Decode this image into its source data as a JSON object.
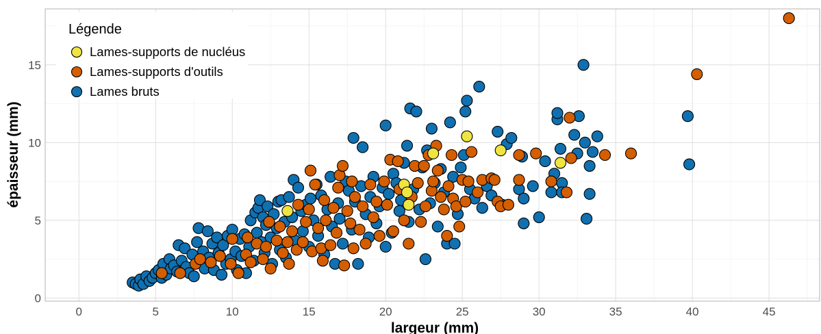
{
  "chart_data": {
    "type": "scatter",
    "xlabel": "largeur (mm)",
    "ylabel": "épaisseur (mm)",
    "xlim": [
      -2.2,
      48.3
    ],
    "ylim": [
      -0.2,
      18.6
    ],
    "xticks": [
      0,
      5,
      10,
      15,
      20,
      25,
      30,
      35,
      40,
      45
    ],
    "yticks": [
      0,
      5,
      10,
      15
    ],
    "grid": true,
    "legend": {
      "title": "Légende",
      "placement": "top-left"
    },
    "series": [
      {
        "name": "Lames bruts",
        "color": "#1070B0",
        "points": [
          [
            3.5,
            1.0
          ],
          [
            3.7,
            0.9
          ],
          [
            3.9,
            0.8
          ],
          [
            4.0,
            1.2
          ],
          [
            4.2,
            0.9
          ],
          [
            4.4,
            1.4
          ],
          [
            4.6,
            1.1
          ],
          [
            4.8,
            1.3
          ],
          [
            5.0,
            1.6
          ],
          [
            5.2,
            1.8
          ],
          [
            5.4,
            1.3
          ],
          [
            5.5,
            2.2
          ],
          [
            5.7,
            1.5
          ],
          [
            5.9,
            2.5
          ],
          [
            6.0,
            1.9
          ],
          [
            6.2,
            2.1
          ],
          [
            6.4,
            1.7
          ],
          [
            6.5,
            3.4
          ],
          [
            6.7,
            2.4
          ],
          [
            6.9,
            3.2
          ],
          [
            7.0,
            2.0
          ],
          [
            7.2,
            1.6
          ],
          [
            7.4,
            2.8
          ],
          [
            7.5,
            1.4
          ],
          [
            7.7,
            3.6
          ],
          [
            7.8,
            4.5
          ],
          [
            7.9,
            2.3
          ],
          [
            8.1,
            3.0
          ],
          [
            8.2,
            1.9
          ],
          [
            8.4,
            4.3
          ],
          [
            8.5,
            2.6
          ],
          [
            8.7,
            3.5
          ],
          [
            8.8,
            1.8
          ],
          [
            9.0,
            3.9
          ],
          [
            9.1,
            2.9
          ],
          [
            9.3,
            1.5
          ],
          [
            9.4,
            3.4
          ],
          [
            9.6,
            2.2
          ],
          [
            9.7,
            4.0
          ],
          [
            9.9,
            2.5
          ],
          [
            10.0,
            4.4
          ],
          [
            10.2,
            3.0
          ],
          [
            10.3,
            1.8
          ],
          [
            10.5,
            3.8
          ],
          [
            10.6,
            2.7
          ],
          [
            10.8,
            4.1
          ],
          [
            10.9,
            1.6
          ],
          [
            11.1,
            3.3
          ],
          [
            11.2,
            5.0
          ],
          [
            11.4,
            2.4
          ],
          [
            11.5,
            5.5
          ],
          [
            11.6,
            4.2
          ],
          [
            11.7,
            5.8
          ],
          [
            11.8,
            6.3
          ],
          [
            11.9,
            3.6
          ],
          [
            12.0,
            5.2
          ],
          [
            12.1,
            2.9
          ],
          [
            12.2,
            4.7
          ],
          [
            12.3,
            5.9
          ],
          [
            12.5,
            3.9
          ],
          [
            12.6,
            2.2
          ],
          [
            12.7,
            5.4
          ],
          [
            12.9,
            4.5
          ],
          [
            13.0,
            6.2
          ],
          [
            13.1,
            3.1
          ],
          [
            13.2,
            6.3
          ],
          [
            13.4,
            4.9
          ],
          [
            13.5,
            2.6
          ],
          [
            13.7,
            6.5
          ],
          [
            13.9,
            5.2
          ],
          [
            14.0,
            7.6
          ],
          [
            14.1,
            3.7
          ],
          [
            14.3,
            7.1
          ],
          [
            14.5,
            5.6
          ],
          [
            14.6,
            4.3
          ],
          [
            14.8,
            6.0
          ],
          [
            15.0,
            3.3
          ],
          [
            15.1,
            6.4
          ],
          [
            15.3,
            5.0
          ],
          [
            15.5,
            7.3
          ],
          [
            15.6,
            4.0
          ],
          [
            15.8,
            6.6
          ],
          [
            16.0,
            2.8
          ],
          [
            16.2,
            5.7
          ],
          [
            16.4,
            7.8
          ],
          [
            16.5,
            4.6
          ],
          [
            16.7,
            2.2
          ],
          [
            16.9,
            6.1
          ],
          [
            17.0,
            5.1
          ],
          [
            17.2,
            3.5
          ],
          [
            17.4,
            7.5
          ],
          [
            17.6,
            6.9
          ],
          [
            17.8,
            4.4
          ],
          [
            17.9,
            10.3
          ],
          [
            18.0,
            6.2
          ],
          [
            18.2,
            2.2
          ],
          [
            18.4,
            7.2
          ],
          [
            18.5,
            9.7
          ],
          [
            18.7,
            5.4
          ],
          [
            18.9,
            3.9
          ],
          [
            19.0,
            6.5
          ],
          [
            19.2,
            7.8
          ],
          [
            19.4,
            4.8
          ],
          [
            19.6,
            5.9
          ],
          [
            19.8,
            7.1
          ],
          [
            20.0,
            3.3
          ],
          [
            20.0,
            11.1
          ],
          [
            20.2,
            6.7
          ],
          [
            20.4,
            4.2
          ],
          [
            20.5,
            8.0
          ],
          [
            20.7,
            7.4
          ],
          [
            20.9,
            5.6
          ],
          [
            21.0,
            6.3
          ],
          [
            21.2,
            8.7
          ],
          [
            21.4,
            9.8
          ],
          [
            21.5,
            4.9
          ],
          [
            21.6,
            12.2
          ],
          [
            21.8,
            7.0
          ],
          [
            22.0,
            12.0
          ],
          [
            22.2,
            5.7
          ],
          [
            22.4,
            8.4
          ],
          [
            22.6,
            2.5
          ],
          [
            22.7,
            9.5
          ],
          [
            22.9,
            6.1
          ],
          [
            23.0,
            10.9
          ],
          [
            23.2,
            7.4
          ],
          [
            23.4,
            4.6
          ],
          [
            23.6,
            8.3
          ],
          [
            23.8,
            6.8
          ],
          [
            24.0,
            3.5
          ],
          [
            24.2,
            11.3
          ],
          [
            24.4,
            7.8
          ],
          [
            24.5,
            3.5
          ],
          [
            24.7,
            5.4
          ],
          [
            24.9,
            8.4
          ],
          [
            25.1,
            9.2
          ],
          [
            25.2,
            12.0
          ],
          [
            25.3,
            12.7
          ],
          [
            25.5,
            7.0
          ],
          [
            25.8,
            6.4
          ],
          [
            26.1,
            13.6
          ],
          [
            26.3,
            5.8
          ],
          [
            26.6,
            7.2
          ],
          [
            26.9,
            6.6
          ],
          [
            27.3,
            10.7
          ],
          [
            27.6,
            6.0
          ],
          [
            27.9,
            9.9
          ],
          [
            28.2,
            10.3
          ],
          [
            28.7,
            7.0
          ],
          [
            28.9,
            9.1
          ],
          [
            29.0,
            4.8
          ],
          [
            29.0,
            6.4
          ],
          [
            29.6,
            7.2
          ],
          [
            30.0,
            5.2
          ],
          [
            30.4,
            8.8
          ],
          [
            30.8,
            6.8
          ],
          [
            31.0,
            8.0
          ],
          [
            31.2,
            11.5
          ],
          [
            31.2,
            11.9
          ],
          [
            31.4,
            9.6
          ],
          [
            31.5,
            7.4
          ],
          [
            31.5,
            6.8
          ],
          [
            32.3,
            10.5
          ],
          [
            32.5,
            9.3
          ],
          [
            32.6,
            11.7
          ],
          [
            32.9,
            15.0
          ],
          [
            33.0,
            10.0
          ],
          [
            33.1,
            5.1
          ],
          [
            33.3,
            8.5
          ],
          [
            33.3,
            6.7
          ],
          [
            33.5,
            9.4
          ],
          [
            33.8,
            10.4
          ],
          [
            39.7,
            11.7
          ],
          [
            39.8,
            8.6
          ]
        ]
      },
      {
        "name": "Lames-supports d'outils",
        "color": "#D55E00",
        "points": [
          [
            5.4,
            1.6
          ],
          [
            6.6,
            1.6
          ],
          [
            7.6,
            2.2
          ],
          [
            7.9,
            2.5
          ],
          [
            8.6,
            2.3
          ],
          [
            9.2,
            2.7
          ],
          [
            9.9,
            2.2
          ],
          [
            10.0,
            3.8
          ],
          [
            10.4,
            1.6
          ],
          [
            10.9,
            2.8
          ],
          [
            11.0,
            3.9
          ],
          [
            11.2,
            2.3
          ],
          [
            11.6,
            3.5
          ],
          [
            12.0,
            2.5
          ],
          [
            12.2,
            3.3
          ],
          [
            12.4,
            4.9
          ],
          [
            12.5,
            1.9
          ],
          [
            12.9,
            3.7
          ],
          [
            13.1,
            4.6
          ],
          [
            13.3,
            2.9
          ],
          [
            13.6,
            3.6
          ],
          [
            13.7,
            2.2
          ],
          [
            13.9,
            4.3
          ],
          [
            14.2,
            3.1
          ],
          [
            14.3,
            6.0
          ],
          [
            14.6,
            3.6
          ],
          [
            14.8,
            4.9
          ],
          [
            15.0,
            5.7
          ],
          [
            15.1,
            8.2
          ],
          [
            15.2,
            3.0
          ],
          [
            15.4,
            7.3
          ],
          [
            15.6,
            4.5
          ],
          [
            15.8,
            3.2
          ],
          [
            15.9,
            2.4
          ],
          [
            16.0,
            6.3
          ],
          [
            16.1,
            5.0
          ],
          [
            16.4,
            3.4
          ],
          [
            16.6,
            5.8
          ],
          [
            16.8,
            4.2
          ],
          [
            16.9,
            7.1
          ],
          [
            17.0,
            7.9
          ],
          [
            17.2,
            8.5
          ],
          [
            17.3,
            2.1
          ],
          [
            17.5,
            5.6
          ],
          [
            17.7,
            4.8
          ],
          [
            17.8,
            7.5
          ],
          [
            17.9,
            3.2
          ],
          [
            18.0,
            6.5
          ],
          [
            18.3,
            4.4
          ],
          [
            18.5,
            5.9
          ],
          [
            18.7,
            3.5
          ],
          [
            19.0,
            7.3
          ],
          [
            19.2,
            5.2
          ],
          [
            19.4,
            6.2
          ],
          [
            19.6,
            4.0
          ],
          [
            19.9,
            7.5
          ],
          [
            20.1,
            6.0
          ],
          [
            20.3,
            8.9
          ],
          [
            20.5,
            4.3
          ],
          [
            20.8,
            8.8
          ],
          [
            20.9,
            7.0
          ],
          [
            21.2,
            5.0
          ],
          [
            21.5,
            3.5
          ],
          [
            21.7,
            6.5
          ],
          [
            21.9,
            8.5
          ],
          [
            22.1,
            7.4
          ],
          [
            22.3,
            4.9
          ],
          [
            22.5,
            8.5
          ],
          [
            22.6,
            5.9
          ],
          [
            22.8,
            9.2
          ],
          [
            23.0,
            6.9
          ],
          [
            23.1,
            7.5
          ],
          [
            23.3,
            9.8
          ],
          [
            23.4,
            8.2
          ],
          [
            23.6,
            6.5
          ],
          [
            23.8,
            5.7
          ],
          [
            24.0,
            4.0
          ],
          [
            24.1,
            7.2
          ],
          [
            24.3,
            9.2
          ],
          [
            24.4,
            6.4
          ],
          [
            24.6,
            5.9
          ],
          [
            24.8,
            4.6
          ],
          [
            25.0,
            7.6
          ],
          [
            25.2,
            6.2
          ],
          [
            25.4,
            7.5
          ],
          [
            25.6,
            9.4
          ],
          [
            26.0,
            6.8
          ],
          [
            26.3,
            7.6
          ],
          [
            26.9,
            7.7
          ],
          [
            27.1,
            7.6
          ],
          [
            27.3,
            6.2
          ],
          [
            27.5,
            5.9
          ],
          [
            28.0,
            6.0
          ],
          [
            28.7,
            9.2
          ],
          [
            28.7,
            7.6
          ],
          [
            29.8,
            9.3
          ],
          [
            30.8,
            7.5
          ],
          [
            31.8,
            6.8
          ],
          [
            32.0,
            11.6
          ],
          [
            32.1,
            9.0
          ],
          [
            34.3,
            9.2
          ],
          [
            36.0,
            9.3
          ],
          [
            40.3,
            14.4
          ],
          [
            46.3,
            18.0
          ]
        ]
      },
      {
        "name": "Lames-supports de nucléus",
        "color": "#F0E442",
        "points": [
          [
            13.6,
            5.6
          ],
          [
            21.2,
            7.3
          ],
          [
            21.4,
            6.8
          ],
          [
            21.5,
            6.0
          ],
          [
            23.1,
            9.3
          ],
          [
            25.3,
            10.4
          ],
          [
            27.5,
            9.5
          ],
          [
            31.4,
            8.7
          ]
        ]
      }
    ]
  }
}
